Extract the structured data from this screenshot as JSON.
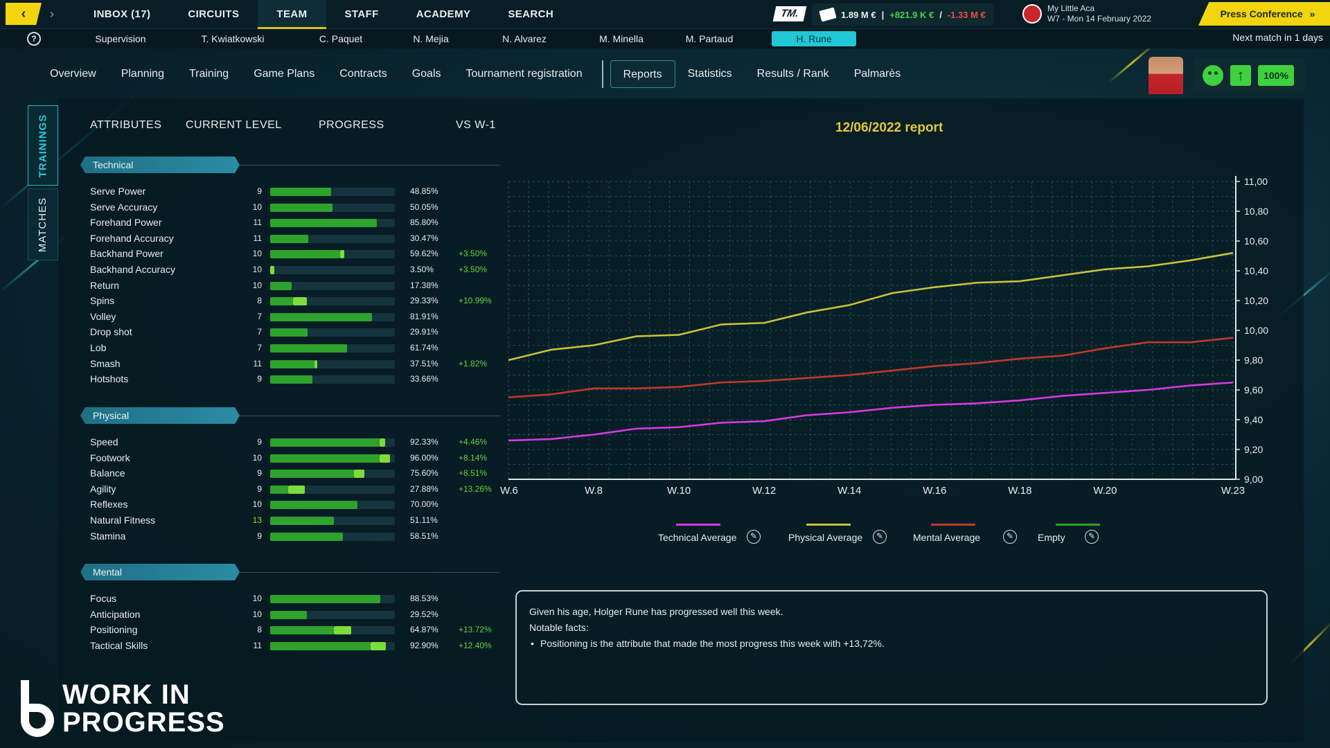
{
  "topbar": {
    "menu": [
      "INBOX (17)",
      "CIRCUITS",
      "TEAM",
      "STAFF",
      "ACADEMY",
      "SEARCH"
    ],
    "active_menu": "TEAM",
    "tm_logo": "TM.",
    "finance": {
      "balance": "1.89 M €",
      "separator": "|",
      "income": "+821.9 K €",
      "slash": "/",
      "expense": "-1.33 M €"
    },
    "club_name": "My Little Aca",
    "date": "W7 - Mon 14 February 2022",
    "press_button": "Press Conference",
    "press_icon": "double-chevron-right-icon"
  },
  "staffbar": {
    "help": "?",
    "staff": [
      "Supervision",
      "T. Kwiatkowski",
      "C. Paquet",
      "N. Mejia",
      "N. Alvarez",
      "M. Minella",
      "M. Partaud",
      "H. Rune"
    ],
    "active_staff": "H. Rune",
    "next_match": "Next match in 1 days"
  },
  "subnav": {
    "tabs": [
      "Overview",
      "Planning",
      "Training",
      "Game Plans",
      "Contracts",
      "Goals",
      "Tournament registration",
      "Reports",
      "Statistics",
      "Results / Rank",
      "Palmarès"
    ],
    "active_tab": "Reports",
    "status_percent": "100%"
  },
  "side_tabs": [
    "TRAININGS",
    "MATCHES"
  ],
  "attributes": {
    "headers": [
      "ATTRIBUTES",
      "CURRENT LEVEL",
      "PROGRESS",
      "VS W-1"
    ],
    "sections": [
      {
        "name": "Technical",
        "rows": [
          {
            "name": "Serve Power",
            "level": "9",
            "progress": 48.85,
            "progress_label": "48.85%",
            "delta": "",
            "gain": 0
          },
          {
            "name": "Serve Accuracy",
            "level": "10",
            "progress": 50.05,
            "progress_label": "50.05%",
            "delta": "",
            "gain": 0
          },
          {
            "name": "Forehand Power",
            "level": "11",
            "progress": 85.8,
            "progress_label": "85.80%",
            "delta": "",
            "gain": 0
          },
          {
            "name": "Forehand Accuracy",
            "level": "11",
            "progress": 30.47,
            "progress_label": "30.47%",
            "delta": "",
            "gain": 0
          },
          {
            "name": "Backhand Power",
            "level": "10",
            "progress": 59.62,
            "progress_label": "59.62%",
            "delta": "+3.50%",
            "gain": 3.5
          },
          {
            "name": "Backhand Accuracy",
            "level": "10",
            "progress": 3.5,
            "progress_label": "3.50%",
            "delta": "+3.50%",
            "gain": 3.5
          },
          {
            "name": "Return",
            "level": "10",
            "progress": 17.38,
            "progress_label": "17.38%",
            "delta": "",
            "gain": 0
          },
          {
            "name": "Spins",
            "level": "8",
            "progress": 29.33,
            "progress_label": "29.33%",
            "delta": "+10.99%",
            "gain": 10.99
          },
          {
            "name": "Volley",
            "level": "7",
            "progress": 81.91,
            "progress_label": "81.91%",
            "delta": "",
            "gain": 0
          },
          {
            "name": "Drop shot",
            "level": "7",
            "progress": 29.91,
            "progress_label": "29.91%",
            "delta": "",
            "gain": 0
          },
          {
            "name": "Lob",
            "level": "7",
            "progress": 61.74,
            "progress_label": "61.74%",
            "delta": "",
            "gain": 0
          },
          {
            "name": "Smash",
            "level": "11",
            "progress": 37.51,
            "progress_label": "37.51%",
            "delta": "+1.82%",
            "gain": 1.82
          },
          {
            "name": "Hotshots",
            "level": "9",
            "progress": 33.66,
            "progress_label": "33.66%",
            "delta": "",
            "gain": 0
          }
        ]
      },
      {
        "name": "Physical",
        "rows": [
          {
            "name": "Speed",
            "level": "9",
            "progress": 92.33,
            "progress_label": "92.33%",
            "delta": "+4.46%",
            "gain": 4.46
          },
          {
            "name": "Footwork",
            "level": "10",
            "progress": 96.0,
            "progress_label": "96.00%",
            "delta": "+8.14%",
            "gain": 8.14
          },
          {
            "name": "Balance",
            "level": "9",
            "progress": 75.6,
            "progress_label": "75.60%",
            "delta": "+8.51%",
            "gain": 8.51
          },
          {
            "name": "Agility",
            "level": "9",
            "progress": 27.88,
            "progress_label": "27.88%",
            "delta": "+13.26%",
            "gain": 13.26
          },
          {
            "name": "Reflexes",
            "level": "10",
            "progress": 70.0,
            "progress_label": "70.00%",
            "delta": "",
            "gain": 0
          },
          {
            "name": "Natural Fitness",
            "level": "13",
            "progress": 51.11,
            "progress_label": "51.11%",
            "delta": "",
            "gain": 0,
            "highlight": true
          },
          {
            "name": "Stamina",
            "level": "9",
            "progress": 58.51,
            "progress_label": "58.51%",
            "delta": "",
            "gain": 0
          }
        ]
      },
      {
        "name": "Mental",
        "rows": [
          {
            "name": "Focus",
            "level": "10",
            "progress": 88.53,
            "progress_label": "88.53%",
            "delta": "",
            "gain": 0
          },
          {
            "name": "Anticipation",
            "level": "10",
            "progress": 29.52,
            "progress_label": "29.52%",
            "delta": "",
            "gain": 0
          },
          {
            "name": "Positioning",
            "level": "8",
            "progress": 64.87,
            "progress_label": "64.87%",
            "delta": "+13.72%",
            "gain": 13.72
          },
          {
            "name": "Tactical Skills",
            "level": "11",
            "progress": 92.9,
            "progress_label": "92.90%",
            "delta": "+12.40%",
            "gain": 12.4
          }
        ]
      }
    ]
  },
  "report": {
    "title": "12/06/2022 report",
    "notes": {
      "line1": "Given his age, Holger Rune has progressed well this week.",
      "line2": "Notable facts:",
      "bullet": "Positioning is the attribute that made the most progress this week with +13,72%."
    }
  },
  "chart_data": {
    "type": "line",
    "x_positions": [
      "W.6",
      "W.7",
      "W.8",
      "W.9",
      "W.10",
      "W.11",
      "W.12",
      "W.13",
      "W.14",
      "W.15",
      "W.16",
      "W.17",
      "W.18",
      "W.19",
      "W.20",
      "W.21",
      "W.22",
      "W.23"
    ],
    "x_tick_labels": [
      "W.6",
      "W.8",
      "W.10",
      "W.12",
      "W.14",
      "W.16",
      "W.18",
      "W.20",
      "W.23"
    ],
    "y_ticks": [
      "11,00",
      "10,80",
      "10,60",
      "10,40",
      "10,20",
      "10,00",
      "9,80",
      "9,60",
      "9,40",
      "9,20",
      "9,00"
    ],
    "ylim": [
      9.0,
      11.0
    ],
    "grid": true,
    "series": [
      {
        "name": "Technical Average",
        "color": "#d63be0",
        "values": [
          9.26,
          9.27,
          9.3,
          9.34,
          9.35,
          9.38,
          9.39,
          9.43,
          9.45,
          9.48,
          9.5,
          9.51,
          9.53,
          9.56,
          9.58,
          9.6,
          9.63,
          9.65
        ]
      },
      {
        "name": "Physical Average",
        "color": "#c9c23a",
        "values": [
          9.8,
          9.87,
          9.9,
          9.96,
          9.97,
          10.04,
          10.05,
          10.12,
          10.17,
          10.25,
          10.29,
          10.32,
          10.33,
          10.37,
          10.41,
          10.43,
          10.47,
          10.52
        ]
      },
      {
        "name": "Mental Average",
        "color": "#c0392b",
        "values": [
          9.55,
          9.57,
          9.61,
          9.61,
          9.62,
          9.65,
          9.66,
          9.68,
          9.7,
          9.73,
          9.76,
          9.78,
          9.81,
          9.83,
          9.88,
          9.92,
          9.92,
          9.95
        ]
      },
      {
        "name": "Empty",
        "color": "#2da32d",
        "values": []
      }
    ]
  },
  "watermark": {
    "line1": "WORK IN",
    "line2": "PROGRESS"
  }
}
